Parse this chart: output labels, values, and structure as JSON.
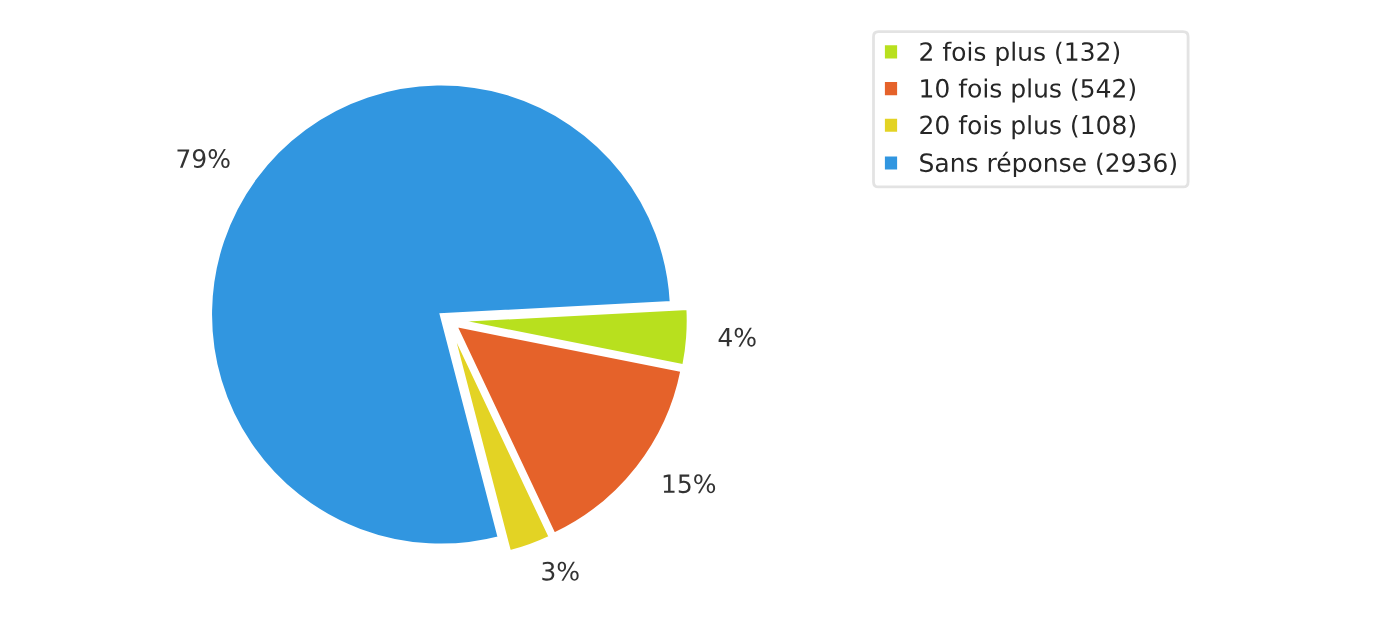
{
  "chart_data": {
    "type": "pie",
    "categories": [
      "2 fois plus (132)",
      "10 fois plus (542)",
      "20 fois plus (108)",
      "Sans réponse (2936)"
    ],
    "values": [
      4,
      15,
      3,
      79
    ],
    "value_labels": [
      "4%",
      "15%",
      "3%",
      "79%"
    ],
    "colors": [
      "#b8e01e",
      "#e5622a",
      "#e3d324",
      "#3196e0"
    ],
    "legend": "top right"
  }
}
